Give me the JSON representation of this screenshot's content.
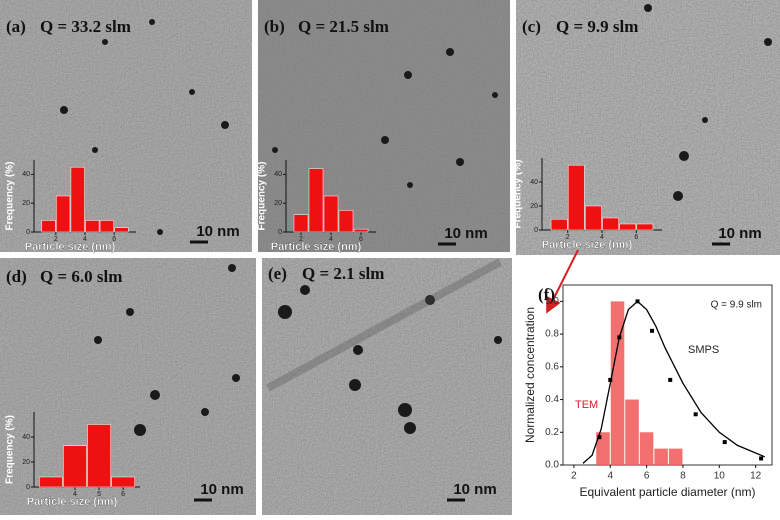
{
  "panels": [
    {
      "label": "(a)",
      "condition": "Q = 33.2 slm",
      "scale_bar": "10 nm"
    },
    {
      "label": "(b)",
      "condition": "Q = 21.5 slm",
      "scale_bar": "10 nm"
    },
    {
      "label": "(c)",
      "condition": "Q = 9.9 slm",
      "scale_bar": "10 nm"
    },
    {
      "label": "(d)",
      "condition": "Q = 6.0 slm",
      "scale_bar": "10 nm"
    },
    {
      "label": "(e)",
      "condition": "Q = 2.1 slm",
      "scale_bar": "10 nm"
    },
    {
      "label": "(f)"
    }
  ],
  "chart_data": [
    {
      "type": "histogram",
      "xlabel": "Particle size (nm)",
      "ylabel": "Frequency (%)",
      "color": "#ee1111",
      "bins": [
        1,
        2,
        3,
        4,
        5,
        6,
        7
      ],
      "values": [
        8,
        25,
        45,
        8,
        8,
        3
      ],
      "xlim": [
        0.5,
        7.5
      ],
      "xticks": [
        2,
        4,
        6
      ],
      "ylim": [
        0,
        50
      ],
      "yticks": [
        0,
        20,
        40
      ]
    },
    {
      "type": "histogram",
      "xlabel": "Particle size (nm)",
      "ylabel": "Frequency (%)",
      "color": "#ee1111",
      "bins": [
        1.5,
        2.5,
        3.5,
        4.5,
        5.5,
        6.5
      ],
      "values": [
        12,
        44,
        25,
        15,
        2
      ],
      "xlim": [
        1,
        7
      ],
      "xticks": [
        2,
        4,
        6
      ],
      "ylim": [
        0,
        50
      ],
      "yticks": [
        0,
        20,
        40
      ]
    },
    {
      "type": "histogram",
      "xlabel": "Particle size (nm)",
      "ylabel": "Frequency (%)",
      "color": "#ee1111",
      "bins": [
        1,
        2,
        3,
        4,
        5,
        6,
        7
      ],
      "values": [
        9,
        54,
        20,
        10,
        5,
        5
      ],
      "xlim": [
        0.5,
        7.5
      ],
      "xticks": [
        2,
        4,
        6
      ],
      "ylim": [
        0,
        60
      ],
      "yticks": [
        0,
        20,
        40
      ]
    },
    {
      "type": "histogram",
      "xlabel": "Particle size (nm)",
      "ylabel": "Frequency (%)",
      "color": "#ee1111",
      "bins": [
        2.5,
        3.5,
        4.5,
        5.5,
        6.5
      ],
      "values": [
        8,
        33,
        50,
        8
      ],
      "xlim": [
        2.3,
        6.7
      ],
      "xticks": [
        4,
        5,
        6
      ],
      "ylim": [
        0,
        60
      ],
      "yticks": [
        0,
        20,
        40
      ]
    },
    {
      "type": "combo",
      "xlabel": "Equivalent particle diameter (nm)",
      "ylabel": "Normalized concentration",
      "annotation": "Q = 9.9 slm",
      "xlim": [
        1.4,
        12.9
      ],
      "xticks": [
        2,
        4,
        6,
        8,
        10,
        12
      ],
      "ylim": [
        0,
        1.1
      ],
      "yticks": [
        {
          "value": 0,
          "label": "0.0"
        },
        {
          "value": 0.2,
          "label": "0.2"
        },
        {
          "value": 0.4,
          "label": "0.4"
        },
        {
          "value": 0.6,
          "label": "0.6"
        },
        {
          "value": 0.8,
          "label": "0.8"
        },
        {
          "value": 1,
          "label": "1.0"
        }
      ],
      "series": [
        {
          "name": "TEM",
          "type": "histogram",
          "color": "#f26060",
          "bins": [
            3.2,
            4,
            4.8,
            5.6,
            6.4,
            7.2,
            8
          ],
          "values": [
            0.2,
            1.0,
            0.4,
            0.2,
            0.1,
            0.1
          ]
        },
        {
          "name": "SMPS",
          "type": "scatter",
          "color": "#000000",
          "x": [
            3.4,
            4.0,
            4.5,
            5.5,
            6.3,
            7.3,
            8.7,
            10.3,
            12.3
          ],
          "values": [
            0.17,
            0.52,
            0.78,
            1.0,
            0.82,
            0.52,
            0.31,
            0.14,
            0.04
          ]
        },
        {
          "type": "line",
          "color": "#000000",
          "x": [
            2.5,
            3,
            3.5,
            4,
            4.5,
            5,
            5.5,
            6,
            6.5,
            7,
            8,
            9,
            10,
            11,
            12.5
          ],
          "values": [
            0.01,
            0.06,
            0.22,
            0.5,
            0.78,
            0.95,
            1.0,
            0.95,
            0.85,
            0.72,
            0.5,
            0.32,
            0.2,
            0.12,
            0.05
          ]
        }
      ]
    }
  ]
}
